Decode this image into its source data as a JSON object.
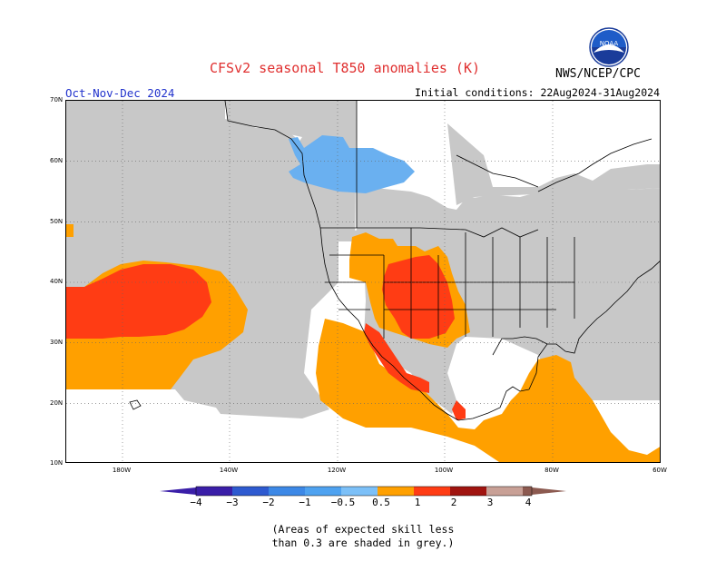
{
  "header": {
    "title": "CFSv2 seasonal T850 anomalies (K)",
    "period": "Oct-Nov-Dec 2024",
    "initial_conditions": "Initial conditions: 22Aug2024-31Aug2024",
    "agency": "NWS/NCEP/CPC",
    "logo_text": "NOAA"
  },
  "map": {
    "lat_labels": [
      "70N",
      "60N",
      "50N",
      "40N",
      "30N",
      "20N",
      "10N"
    ],
    "lon_labels": [
      "180W",
      "140W",
      "120W",
      "100W",
      "80W",
      "60W"
    ],
    "colors": {
      "grey_low_skill": "#c8c8c8",
      "blue_light": "#6ab0f0",
      "orange": "#ffa000",
      "red_orange": "#ff3c14",
      "land_line": "#000000"
    },
    "regions": [
      {
        "name": "Northeast Pacific warm anomaly",
        "range": "1 to 2 K"
      },
      {
        "name": "Southwest US / northern Mexico warm anomaly",
        "range": "1 to 2 K"
      },
      {
        "name": "Central Canada cool anomaly",
        "range": "-1 to -0.5 K"
      },
      {
        "name": "Caribbean / Gulf warm anomaly",
        "range": "0.5 to 1 K"
      }
    ]
  },
  "colorbar": {
    "labels": [
      "−4",
      "−3",
      "−2",
      "−1",
      "−0.5",
      "0.5",
      "1",
      "2",
      "3",
      "4"
    ],
    "colors": [
      "#3a1ea8",
      "#2e5ad0",
      "#3c88e6",
      "#4ea2f0",
      "#7cc0f8",
      "#ffffff",
      "#ffa000",
      "#ff3c14",
      "#c81e0a",
      "#a01410",
      "#c8a096",
      "#8c5a50"
    ]
  },
  "footnote": {
    "line1": "(Areas of expected skill less",
    "line2": "than 0.3 are shaded in grey.)"
  }
}
